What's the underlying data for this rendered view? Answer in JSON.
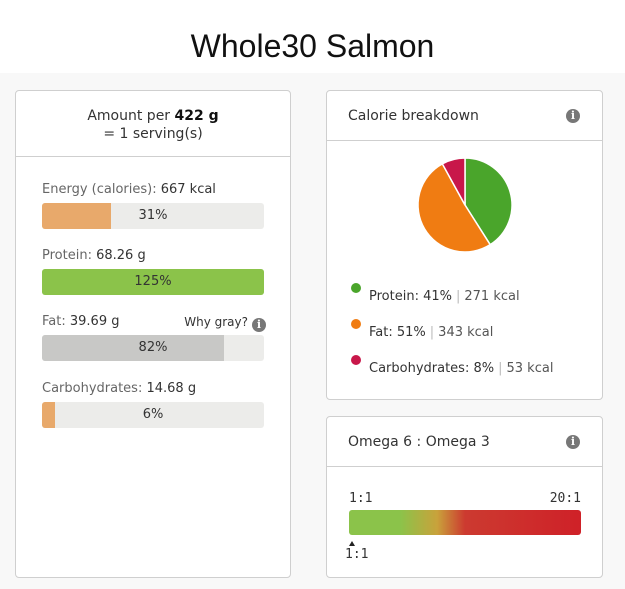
{
  "page": {
    "title": "Whole30 Salmon"
  },
  "amount": {
    "prefix": "Amount per",
    "amount": "422 g",
    "serving": "= 1 serving(s)"
  },
  "nutrients": [
    {
      "label": "Energy (calories):",
      "value": "667 kcal",
      "percent_label": "31%",
      "fraction": 0.31,
      "color": "#e8a96b"
    },
    {
      "label": "Protein:",
      "value": "68.26 g",
      "percent_label": "125%",
      "fraction": 1.0,
      "color": "#8bc34a"
    },
    {
      "label": "Fat:",
      "value": "39.69 g",
      "percent_label": "82%",
      "fraction": 0.82,
      "color": "#c8c8c6",
      "note": "Why gray?",
      "note_icon": "info-icon"
    },
    {
      "label": "Carbohydrates:",
      "value": "14.68 g",
      "percent_label": "6%",
      "fraction": 0.06,
      "color": "#e8a96b"
    }
  ],
  "calorie_breakdown": {
    "title": "Calorie breakdown",
    "icon": "info-icon",
    "chart_data": {
      "type": "pie",
      "series": [
        {
          "name": "Protein",
          "percent": 41,
          "kcal": 271,
          "color": "#4aa52b"
        },
        {
          "name": "Fat",
          "percent": 51,
          "kcal": 343,
          "color": "#f07c12"
        },
        {
          "name": "Carbohydrates",
          "percent": 8,
          "kcal": 53,
          "color": "#c8174a"
        }
      ]
    },
    "legend": [
      {
        "label": "Protein:",
        "percent": "41%",
        "kcal": "271 kcal",
        "color": "#4aa52b"
      },
      {
        "label": "Fat:",
        "percent": "51%",
        "kcal": "343 kcal",
        "color": "#f07c12"
      },
      {
        "label": "Carbohydrates:",
        "percent": "8%",
        "kcal": "53 kcal",
        "color": "#c8174a"
      }
    ]
  },
  "omega": {
    "title": "Omega 6 : Omega 3",
    "icon": "info-icon",
    "scale_min": "1:1",
    "scale_max": "20:1",
    "value_label": "1:1"
  }
}
